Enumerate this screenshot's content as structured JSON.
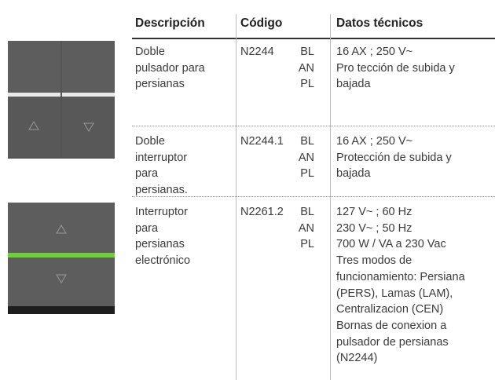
{
  "header": {
    "description": "Descripción",
    "code": "Código",
    "data": "Datos técnicos"
  },
  "rows": [
    {
      "description": [
        "Doble",
        "pulsador para",
        "persianas"
      ],
      "code": "N2244",
      "variants": [
        "BL",
        "AN",
        "PL"
      ],
      "specs": [
        "16 AX ; 250 V~",
        "Pro tección de subida y",
        "bajada"
      ]
    },
    {
      "description": [
        "Doble",
        "interruptor",
        "para",
        "persianas."
      ],
      "code": "N2244.1",
      "variants": [
        "BL",
        "AN",
        "PL"
      ],
      "specs": [
        "16 AX ; 250 V~",
        "Protección de subida y",
        "bajada"
      ]
    },
    {
      "description": [
        "Interruptor",
        "para",
        "persianas",
        "electrónico"
      ],
      "code": "N2261.2",
      "variants": [
        "BL",
        "AN",
        "PL"
      ],
      "specs": [
        "127 V~ ; 60 Hz",
        "230 V~ ; 50 Hz",
        "700 W / VA a 230 Vac",
        "Tres modos de",
        "funcionamiento: Persiana",
        "(PERS), Lamas (LAM),",
        "Centralizacion (CEN)",
        "Bornas de conexion a",
        "pulsador de persianas",
        "(N2244)"
      ]
    }
  ]
}
